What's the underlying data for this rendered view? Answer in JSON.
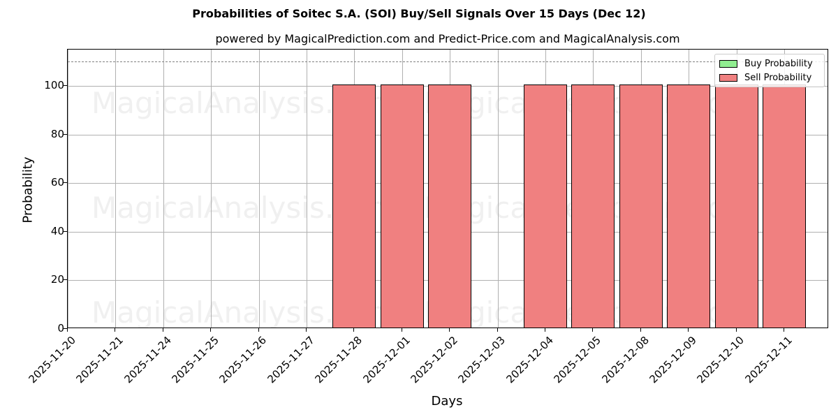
{
  "chart_data": {
    "type": "bar",
    "title": "Probabilities of Soitec S.A. (SOI) Buy/Sell Signals Over 15 Days (Dec 12)",
    "subtitle": "powered by MagicalPrediction.com and Predict-Price.com and MagicalAnalysis.com",
    "xlabel": "Days",
    "ylabel": "Probability",
    "ylim": [
      0,
      115
    ],
    "yticks": [
      "0",
      "20",
      "40",
      "60",
      "80",
      "100"
    ],
    "reference_line": 110,
    "grid": true,
    "legend_position": "upper right",
    "categories": [
      "2025-11-20",
      "2025-11-21",
      "2025-11-24",
      "2025-11-25",
      "2025-11-26",
      "2025-11-27",
      "2025-11-28",
      "2025-12-01",
      "2025-12-02",
      "2025-12-03",
      "2025-12-04",
      "2025-12-05",
      "2025-12-08",
      "2025-12-09",
      "2025-12-10",
      "2025-12-11"
    ],
    "series": [
      {
        "name": "Buy Probability",
        "color": "#90ee90",
        "values": [
          0,
          0,
          0,
          0,
          0,
          0,
          0,
          0,
          0,
          0,
          0,
          0,
          0,
          0,
          0,
          0
        ]
      },
      {
        "name": "Sell Probability",
        "color": "#f08080",
        "values": [
          0,
          0,
          0,
          0,
          0,
          0,
          100,
          100,
          100,
          0,
          100,
          100,
          100,
          100,
          100,
          100
        ]
      }
    ]
  },
  "legend": {
    "buy": "Buy Probability",
    "sell": "Sell Probability"
  },
  "watermarks": [
    "MagicalAnalysis.com",
    "MagicalPrediction.com"
  ]
}
